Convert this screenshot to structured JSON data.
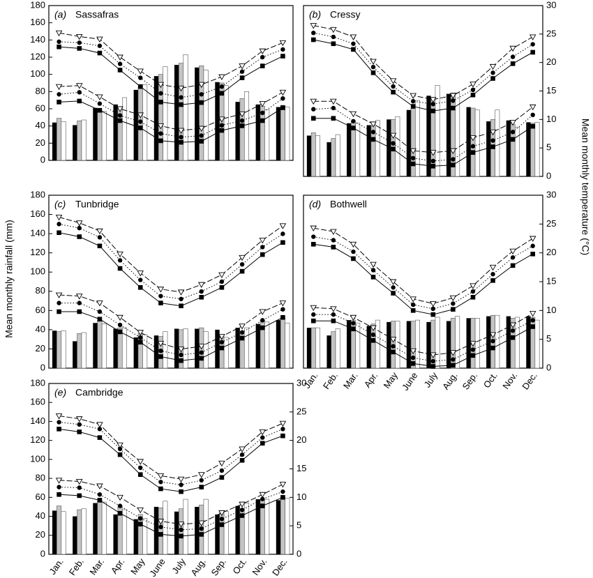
{
  "y_axis_title": "Mean monthly rainfall (mm)",
  "y2_axis_title": "Mean monthly temperature (°C)",
  "chart_data": [
    {
      "type": "combo",
      "label": "(a)",
      "title": "Sassafras",
      "ylim": [
        0,
        180
      ],
      "yticks": [
        0,
        20,
        40,
        60,
        80,
        100,
        120,
        140,
        160,
        180
      ],
      "y2lim": [
        0,
        30
      ],
      "series": [
        {
          "type": "bar",
          "color": "#000000",
          "values": [
            44,
            41,
            61,
            65,
            82,
            98,
            111,
            108,
            91,
            68,
            65,
            62
          ]
        },
        {
          "type": "bar",
          "color": "#c4c4c4",
          "values": [
            49,
            46,
            58,
            62,
            85,
            100,
            113,
            110,
            90,
            72,
            63,
            64
          ]
        },
        {
          "type": "bar",
          "color": "#ffffff",
          "values": [
            45,
            47,
            57,
            73,
            88,
            109,
            123,
            105,
            87,
            80,
            59,
            62
          ]
        },
        {
          "type": "line",
          "axis": "y2",
          "marker": "square",
          "dash": "solid",
          "color": "#000000",
          "values": [
            22,
            21.7,
            20.8,
            17.5,
            14.3,
            11.3,
            10.8,
            11.2,
            13,
            16,
            18.3,
            20.2
          ]
        },
        {
          "type": "line",
          "axis": "y2",
          "marker": "circle",
          "dash": "dotted",
          "color": "#000000",
          "values": [
            23,
            22.8,
            22.2,
            18.7,
            16,
            13,
            12.2,
            12.8,
            14.3,
            17.2,
            20,
            21.5
          ]
        },
        {
          "type": "line",
          "axis": "y2",
          "marker": "triangle-down",
          "dash": "dashed",
          "color": "#000000",
          "values": [
            24.7,
            24,
            23.5,
            20,
            17.3,
            14.7,
            14,
            14.7,
            16.2,
            18.3,
            21.2,
            22.8
          ]
        },
        {
          "type": "line",
          "axis": "y2",
          "marker": "square",
          "dash": "solid",
          "color": "#000000",
          "values": [
            11.3,
            11.5,
            9.7,
            7.7,
            6.3,
            3.8,
            3.5,
            3.7,
            5.8,
            6.7,
            7.7,
            10.2
          ]
        },
        {
          "type": "line",
          "axis": "y2",
          "marker": "circle",
          "dash": "dotted",
          "color": "#000000",
          "values": [
            12.8,
            13.2,
            11,
            8.7,
            7.5,
            5.2,
            4.5,
            4.8,
            6.8,
            7.7,
            9.2,
            12
          ]
        },
        {
          "type": "line",
          "axis": "y2",
          "marker": "triangle-down",
          "dash": "dashed",
          "color": "#000000",
          "values": [
            14.3,
            14.5,
            12.3,
            10,
            8.8,
            6.7,
            5.8,
            6.2,
            8,
            9,
            11,
            13.2
          ]
        }
      ]
    },
    {
      "type": "combo",
      "label": "(b)",
      "title": "Cressy",
      "ylim": [
        0,
        180
      ],
      "y2lim": [
        0,
        30
      ],
      "y2ticks": [
        0,
        5,
        10,
        15,
        20,
        25,
        30
      ],
      "series": [
        {
          "type": "bar",
          "color": "#000000",
          "values": [
            43,
            36,
            56,
            54,
            60,
            70,
            85,
            87,
            73,
            58,
            59,
            57
          ]
        },
        {
          "type": "bar",
          "color": "#c4c4c4",
          "values": [
            46,
            40,
            58,
            54,
            60,
            72,
            83,
            88,
            72,
            60,
            55,
            56
          ]
        },
        {
          "type": "bar",
          "color": "#ffffff",
          "values": [
            43,
            44,
            56,
            59,
            63,
            80,
            96,
            88,
            70,
            70,
            52,
            57
          ]
        },
        {
          "type": "line",
          "axis": "y2",
          "marker": "square",
          "dash": "solid",
          "color": "#000000",
          "values": [
            24,
            23.3,
            22.3,
            18.2,
            14.8,
            12.3,
            11.5,
            12,
            14.3,
            17.2,
            19.8,
            21.8
          ]
        },
        {
          "type": "line",
          "axis": "y2",
          "marker": "circle",
          "dash": "dotted",
          "color": "#000000",
          "values": [
            25.2,
            24.5,
            23.3,
            19.2,
            15.8,
            13.2,
            12.7,
            13.3,
            15.2,
            18.2,
            21,
            23.2
          ]
        },
        {
          "type": "line",
          "axis": "y2",
          "marker": "triangle-down",
          "dash": "dashed",
          "color": "#000000",
          "values": [
            26.5,
            25.8,
            24.5,
            20.2,
            16.8,
            14.2,
            13.5,
            14.2,
            16.2,
            19.3,
            22.5,
            24.5
          ]
        },
        {
          "type": "line",
          "axis": "y2",
          "marker": "square",
          "dash": "solid",
          "color": "#000000",
          "values": [
            10.2,
            10.2,
            8.5,
            6.5,
            4.8,
            2.2,
            1.8,
            2,
            4.2,
            5.2,
            6.5,
            8.8
          ]
        },
        {
          "type": "line",
          "axis": "y2",
          "marker": "circle",
          "dash": "dotted",
          "color": "#000000",
          "values": [
            11.8,
            12,
            9.7,
            7.8,
            5.8,
            3.2,
            2.7,
            3,
            5.3,
            6.3,
            7.8,
            10.8
          ]
        },
        {
          "type": "line",
          "axis": "y2",
          "marker": "triangle-down",
          "dash": "dashed",
          "color": "#000000",
          "values": [
            13.2,
            13.2,
            11,
            9.2,
            7.2,
            4.5,
            4.2,
            4.5,
            6.8,
            7.8,
            9.5,
            12.2
          ]
        }
      ]
    },
    {
      "type": "combo",
      "label": "(c)",
      "title": "Tunbridge",
      "ylim": [
        0,
        180
      ],
      "yticks": [
        0,
        20,
        40,
        60,
        80,
        100,
        120,
        140,
        160,
        180
      ],
      "y2lim": [
        0,
        30
      ],
      "series": [
        {
          "type": "bar",
          "color": "#000000",
          "values": [
            39,
            28,
            47,
            41,
            32,
            34,
            41,
            41,
            40,
            42,
            46,
            50
          ]
        },
        {
          "type": "bar",
          "color": "#c4c4c4",
          "values": [
            38,
            36,
            50,
            42,
            36,
            33,
            40,
            42,
            33,
            38,
            50,
            52
          ]
        },
        {
          "type": "bar",
          "color": "#ffffff",
          "values": [
            39,
            37,
            46,
            42,
            35,
            38,
            41,
            38,
            32,
            42,
            48,
            47
          ]
        },
        {
          "type": "line",
          "axis": "y2",
          "marker": "square",
          "dash": "solid",
          "color": "#000000",
          "values": [
            23.5,
            22.8,
            21.2,
            17.3,
            14,
            11.3,
            10.8,
            12.3,
            14,
            16.8,
            19.7,
            21.8
          ]
        },
        {
          "type": "line",
          "axis": "y2",
          "marker": "circle",
          "dash": "dotted",
          "color": "#000000",
          "values": [
            25,
            24.3,
            22.7,
            18.7,
            15.3,
            12.5,
            12,
            13.3,
            15,
            18,
            21,
            23.3
          ]
        },
        {
          "type": "line",
          "axis": "y2",
          "marker": "triangle-down",
          "dash": "dashed",
          "color": "#000000",
          "values": [
            26.2,
            25.2,
            23.8,
            19.8,
            16.5,
            13.7,
            13.2,
            14.5,
            16.2,
            19.2,
            22.2,
            24.7
          ]
        },
        {
          "type": "line",
          "axis": "y2",
          "marker": "square",
          "dash": "solid",
          "color": "#000000",
          "values": [
            9.8,
            9.8,
            8.5,
            6.3,
            4.5,
            2,
            1.3,
            1.7,
            3.5,
            5.2,
            7,
            8.8
          ]
        },
        {
          "type": "line",
          "axis": "y2",
          "marker": "circle",
          "dash": "dotted",
          "color": "#000000",
          "values": [
            11.3,
            11.3,
            9.8,
            7.5,
            5.3,
            3,
            2.3,
            2.7,
            4.5,
            6.2,
            8.3,
            10.2
          ]
        },
        {
          "type": "line",
          "axis": "y2",
          "marker": "triangle-down",
          "dash": "dashed",
          "color": "#000000",
          "values": [
            12.7,
            12.5,
            11.3,
            8.8,
            6.2,
            4.3,
            3.3,
            3.8,
            5.5,
            7.3,
            9.8,
            11.3
          ]
        }
      ]
    },
    {
      "type": "combo",
      "label": "(d)",
      "title": "Bothwell",
      "categories": [
        "Jan.",
        "Feb.",
        "Mar.",
        "Apr.",
        "May",
        "June",
        "July",
        "Aug.",
        "Sep.",
        "Oct.",
        "Nov.",
        "Dec."
      ],
      "ylim": [
        0,
        180
      ],
      "y2lim": [
        0,
        30
      ],
      "y2ticks": [
        0,
        5,
        10,
        15,
        20,
        25,
        30
      ],
      "series": [
        {
          "type": "bar",
          "color": "#000000",
          "values": [
            42,
            34,
            50,
            44,
            48,
            49,
            48,
            49,
            52,
            54,
            54,
            54
          ]
        },
        {
          "type": "bar",
          "color": "#c4c4c4",
          "values": [
            42,
            38,
            50,
            46,
            49,
            49,
            50,
            52,
            52,
            55,
            52,
            53
          ]
        },
        {
          "type": "bar",
          "color": "#ffffff",
          "values": [
            42,
            41,
            47,
            50,
            49,
            50,
            53,
            54,
            52,
            55,
            53,
            50
          ]
        },
        {
          "type": "line",
          "axis": "y2",
          "marker": "square",
          "dash": "solid",
          "color": "#000000",
          "values": [
            21.5,
            21,
            19,
            15.8,
            13,
            10,
            9.3,
            10.2,
            12.3,
            15.2,
            17.8,
            19.8
          ]
        },
        {
          "type": "line",
          "axis": "y2",
          "marker": "circle",
          "dash": "dotted",
          "color": "#000000",
          "values": [
            22.8,
            22.2,
            20.2,
            17,
            14,
            11,
            10.3,
            11.2,
            13.3,
            16.3,
            19.2,
            21.2
          ]
        },
        {
          "type": "line",
          "axis": "y2",
          "marker": "triangle-down",
          "dash": "dashed",
          "color": "#000000",
          "values": [
            24.3,
            23.7,
            21.5,
            18,
            15,
            12,
            11.2,
            12.2,
            14.3,
            17.5,
            20.3,
            22.5
          ]
        },
        {
          "type": "line",
          "axis": "y2",
          "marker": "square",
          "dash": "solid",
          "color": "#000000",
          "values": [
            8.2,
            8.2,
            6.8,
            4.8,
            2.8,
            0.8,
            0.3,
            0.5,
            2.2,
            3.5,
            5.3,
            7.2
          ]
        },
        {
          "type": "line",
          "axis": "y2",
          "marker": "circle",
          "dash": "dotted",
          "color": "#000000",
          "values": [
            9.3,
            9.3,
            7.8,
            5.8,
            3.8,
            1.8,
            1.2,
            1.5,
            3.2,
            4.7,
            6.5,
            8.3
          ]
        },
        {
          "type": "line",
          "axis": "y2",
          "marker": "triangle-down",
          "dash": "dashed",
          "color": "#000000",
          "values": [
            10.5,
            10.3,
            8.8,
            7,
            5,
            3,
            2.3,
            2.7,
            4.3,
            5.8,
            7.5,
            9.5
          ]
        }
      ]
    },
    {
      "type": "combo",
      "label": "(e)",
      "title": "Cambridge",
      "categories": [
        "Jan.",
        "Feb.",
        "Mar.",
        "Apr.",
        "May",
        "June",
        "July",
        "Aug.",
        "Sep.",
        "Oct.",
        "Nov.",
        "Dec."
      ],
      "ylim": [
        0,
        180
      ],
      "yticks": [
        0,
        20,
        40,
        60,
        80,
        100,
        120,
        140,
        160,
        180
      ],
      "y2lim": [
        0,
        30
      ],
      "y2ticks": [
        0,
        5,
        10,
        15,
        20,
        25,
        30
      ],
      "series": [
        {
          "type": "bar",
          "color": "#000000",
          "values": [
            46,
            40,
            54,
            42,
            37,
            50,
            45,
            50,
            42,
            51,
            58,
            57
          ]
        },
        {
          "type": "bar",
          "color": "#c4c4c4",
          "values": [
            51,
            47,
            57,
            50,
            42,
            49,
            48,
            52,
            44,
            48,
            57,
            60
          ]
        },
        {
          "type": "bar",
          "color": "#ffffff",
          "values": [
            45,
            48,
            55,
            47,
            38,
            56,
            58,
            58,
            45,
            54,
            58,
            59
          ]
        },
        {
          "type": "line",
          "axis": "y2",
          "marker": "square",
          "dash": "solid",
          "color": "#000000",
          "values": [
            22,
            21.5,
            20.5,
            17.5,
            14,
            11.5,
            11,
            11.8,
            13.5,
            16.5,
            19.5,
            20.8
          ]
        },
        {
          "type": "line",
          "axis": "y2",
          "marker": "circle",
          "dash": "dotted",
          "color": "#000000",
          "values": [
            23.2,
            22.8,
            22,
            18.5,
            15.2,
            12.7,
            12.2,
            13,
            14.7,
            17.5,
            20.5,
            22
          ]
        },
        {
          "type": "line",
          "axis": "y2",
          "marker": "triangle-down",
          "dash": "dashed",
          "color": "#000000",
          "values": [
            24.3,
            23.8,
            22.8,
            19.2,
            16.3,
            13.8,
            13.2,
            14,
            16,
            18.5,
            21.5,
            23
          ]
        },
        {
          "type": "line",
          "axis": "y2",
          "marker": "square",
          "dash": "solid",
          "color": "#000000",
          "values": [
            10.5,
            10.3,
            9.5,
            7.2,
            5.3,
            3.5,
            3.2,
            3.5,
            5.2,
            6.8,
            8.5,
            10
          ]
        },
        {
          "type": "line",
          "axis": "y2",
          "marker": "circle",
          "dash": "dotted",
          "color": "#000000",
          "values": [
            11.8,
            11.7,
            10.5,
            8.5,
            6.3,
            4.8,
            4.3,
            4.5,
            6.2,
            7.8,
            9.7,
            11
          ]
        },
        {
          "type": "line",
          "axis": "y2",
          "marker": "triangle-down",
          "dash": "dashed",
          "color": "#000000",
          "values": [
            13,
            12.8,
            12,
            10,
            7.8,
            5.8,
            5.3,
            5.5,
            7.3,
            8.8,
            10.5,
            12.3
          ]
        }
      ]
    }
  ]
}
